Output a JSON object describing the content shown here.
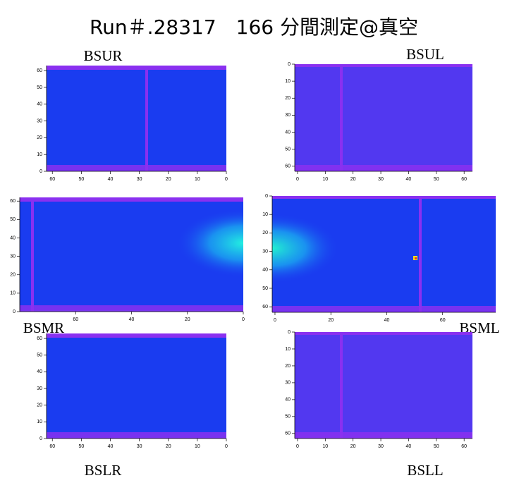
{
  "title": "Run＃.28317　166 分間測定@真空",
  "chart_data": [
    {
      "type": "heatmap",
      "label": "BSUR",
      "xlim": [
        62,
        0
      ],
      "xticks": [
        60,
        50,
        40,
        30,
        20,
        10,
        0
      ],
      "ylim": [
        0,
        63
      ],
      "yticks": [
        0,
        10,
        20,
        30,
        40,
        50,
        60
      ]
    },
    {
      "type": "heatmap",
      "label": "BSUL",
      "xlim": [
        -1,
        63
      ],
      "xticks": [
        0,
        10,
        20,
        30,
        40,
        50,
        60
      ],
      "ylim": [
        63,
        0
      ],
      "yticks": [
        0,
        10,
        20,
        30,
        40,
        50,
        60
      ]
    },
    {
      "type": "heatmap",
      "label": "BSMR",
      "xlim": [
        80,
        0
      ],
      "xticks": [
        60,
        40,
        20,
        0
      ],
      "ylim": [
        0,
        62
      ],
      "yticks": [
        0,
        10,
        20,
        30,
        40,
        50,
        60
      ]
    },
    {
      "type": "heatmap",
      "label": "BSML",
      "xlim": [
        -1,
        79
      ],
      "xticks": [
        0,
        20,
        40,
        60
      ],
      "ylim": [
        63,
        0
      ],
      "yticks": [
        0,
        10,
        20,
        30,
        40,
        50,
        60
      ]
    },
    {
      "type": "heatmap",
      "label": "BSLR",
      "xlim": [
        62,
        0
      ],
      "xticks": [
        60,
        50,
        40,
        30,
        20,
        10,
        0
      ],
      "ylim": [
        0,
        63
      ],
      "yticks": [
        0,
        10,
        20,
        30,
        40,
        50,
        60
      ]
    },
    {
      "type": "heatmap",
      "label": "BSLL",
      "xlim": [
        -1,
        63
      ],
      "xticks": [
        0,
        10,
        20,
        30,
        40,
        50,
        60
      ],
      "ylim": [
        63,
        0
      ],
      "yticks": [
        0,
        10,
        20,
        30,
        40,
        50,
        60
      ]
    }
  ]
}
